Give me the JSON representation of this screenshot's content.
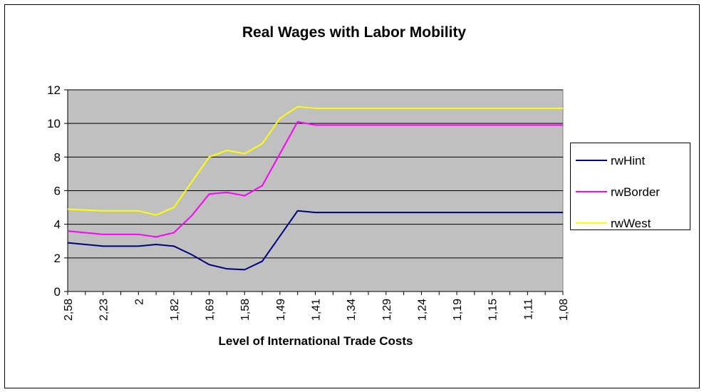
{
  "chart_data": {
    "type": "line",
    "title": "Real Wages with Labor Mobility",
    "x_label": "Level of International Trade Costs",
    "categories": [
      "2,58",
      null,
      "2,23",
      null,
      "2",
      null,
      "1,82",
      null,
      "1,69",
      null,
      "1,58",
      null,
      "1,49",
      null,
      "1,41",
      null,
      "1,34",
      null,
      "1,29",
      null,
      "1,24",
      null,
      "1,19",
      null,
      "1,15",
      null,
      "1,11",
      null,
      "1,08"
    ],
    "series": [
      {
        "name": "rwHint",
        "color": "#000080",
        "values": [
          2.9,
          2.8,
          2.7,
          2.7,
          2.7,
          2.8,
          2.7,
          2.2,
          1.6,
          1.35,
          1.3,
          1.8,
          3.3,
          4.8,
          4.7,
          4.7,
          4.7,
          4.7,
          4.7,
          4.7,
          4.7,
          4.7,
          4.7,
          4.7,
          4.7,
          4.7,
          4.7,
          4.7,
          4.7
        ]
      },
      {
        "name": "rwBorder",
        "color": "#ff00ff",
        "values": [
          3.6,
          3.5,
          3.4,
          3.4,
          3.4,
          3.25,
          3.5,
          4.5,
          5.8,
          5.9,
          5.7,
          6.3,
          8.2,
          10.1,
          9.9,
          9.9,
          9.9,
          9.9,
          9.9,
          9.9,
          9.9,
          9.9,
          9.9,
          9.9,
          9.9,
          9.9,
          9.9,
          9.9,
          9.9
        ]
      },
      {
        "name": "rwWest",
        "color": "#ffff00",
        "values": [
          4.9,
          4.85,
          4.8,
          4.8,
          4.8,
          4.55,
          5.0,
          6.5,
          8.0,
          8.4,
          8.2,
          8.8,
          10.3,
          11.0,
          10.9,
          10.9,
          10.9,
          10.9,
          10.9,
          10.9,
          10.9,
          10.9,
          10.9,
          10.9,
          10.9,
          10.9,
          10.9,
          10.9,
          10.9
        ]
      }
    ],
    "ylim": [
      0,
      12
    ],
    "yticks": [
      0,
      2,
      4,
      6,
      8,
      10,
      12
    ],
    "grid": true,
    "legend": "right"
  }
}
